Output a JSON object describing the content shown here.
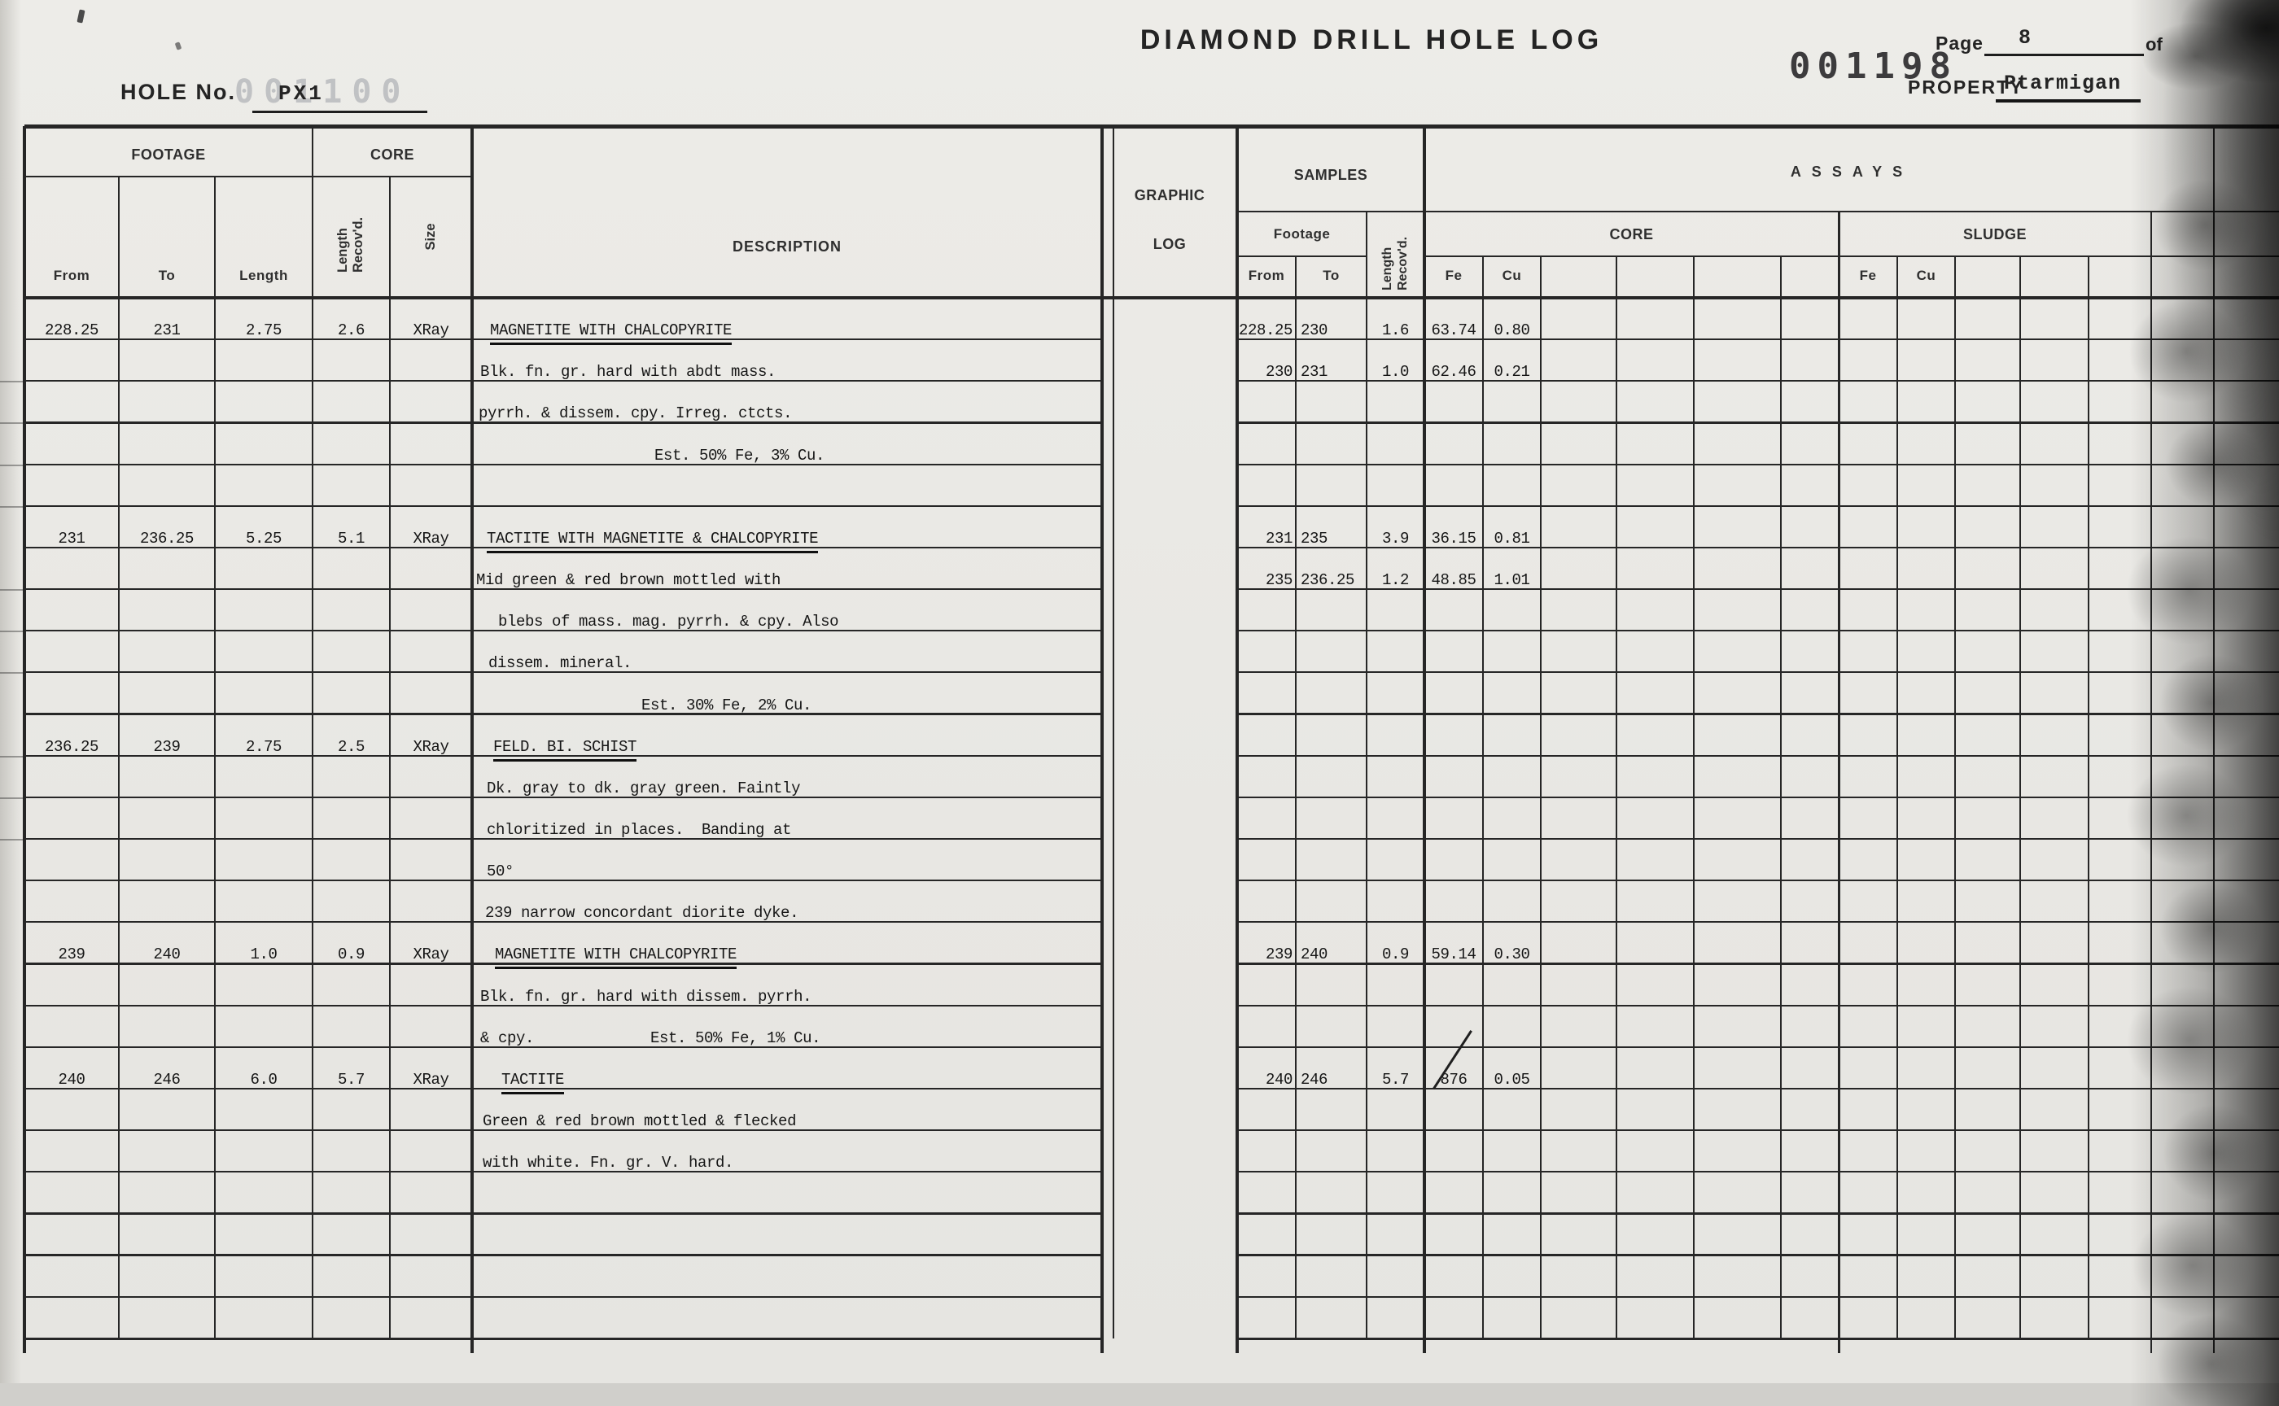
{
  "header": {
    "title": "DIAMOND DRILL HOLE LOG",
    "hole_no_label": "HOLE No.",
    "hole_no_value": "PX1",
    "hole_stamp_faint": "001100",
    "page_label": "Page",
    "page_value": "8",
    "of_label": "of",
    "serial_stamp": "001198",
    "property_label": "PROPERTY",
    "property_value": "Ptarmigan"
  },
  "table_header": {
    "footage": "FOOTAGE",
    "core": "CORE",
    "from": "From",
    "to": "To",
    "length": "Length",
    "length_recovd": "Length Recov'd.",
    "size": "Size",
    "description": "DESCRIPTION",
    "graphic": "GRAPHIC",
    "log": "LOG",
    "samples": "SAMPLES",
    "samples_footage": "Footage",
    "samples_from": "From",
    "samples_to": "To",
    "samples_length_recovd": "Length Recov'd.",
    "assays": "ASSAYS",
    "assays_core": "CORE",
    "assays_sludge": "SLUDGE",
    "core_fe": "Fe",
    "core_cu": "Cu",
    "sludge_fe": "Fe",
    "sludge_cu": "Cu"
  },
  "entries": {
    "intervals": [
      {
        "row": 0,
        "from": "228.25",
        "to": "231",
        "length": "2.75",
        "recovered": "2.6",
        "size": "XRay",
        "description": [
          {
            "text": "MAGNETITE WITH CHALCOPYRITE",
            "title": true,
            "indent": 4
          },
          {
            "text": "Blk. fn. gr. hard with abdt mass.",
            "indent": -8
          },
          {
            "text": "pyrrh. & dissem. cpy. Irreg. ctcts.",
            "indent": -10
          },
          {
            "text": "Est. 50% Fe, 3% Cu.",
            "indent": 206
          }
        ],
        "samples": [
          {
            "row": 0,
            "from": "228.25",
            "to": "230",
            "length": "1.6",
            "fe": "63.74",
            "cu": "0.80"
          },
          {
            "row": 1,
            "from": "230",
            "to": "231",
            "length": "1.0",
            "fe": "62.46",
            "cu": "0.21"
          }
        ]
      },
      {
        "row": 5,
        "from": "231",
        "to": "236.25",
        "length": "5.25",
        "recovered": "5.1",
        "size": "XRay",
        "description": [
          {
            "text": "TACTITE WITH MAGNETITE & CHALCOPYRITE",
            "title": true,
            "indent": 0
          },
          {
            "text": "Mid green & red brown mottled with",
            "indent": -13
          },
          {
            "text": "blebs of mass. mag. pyrrh. & cpy. Also",
            "indent": 14
          },
          {
            "text": "dissem. mineral.",
            "indent": 2
          },
          {
            "text": "Est. 30% Fe, 2% Cu.",
            "indent": 190
          }
        ],
        "samples": [
          {
            "row": 0,
            "from": "231",
            "to": "235",
            "length": "3.9",
            "fe": "36.15",
            "cu": "0.81"
          },
          {
            "row": 1,
            "from": "235",
            "to": "236.25",
            "length": "1.2",
            "fe": "48.85",
            "cu": "1.01"
          }
        ]
      },
      {
        "row": 10,
        "from": "236.25",
        "to": "239",
        "length": "2.75",
        "recovered": "2.5",
        "size": "XRay",
        "description": [
          {
            "text": "FELD. BI. SCHIST",
            "title": true,
            "indent": 8
          },
          {
            "text": "Dk. gray to dk. gray green. Faintly",
            "indent": 0
          },
          {
            "text": "chloritized in places.  Banding at",
            "indent": 0
          },
          {
            "text": "50°",
            "indent": 0
          },
          {
            "text": "239 narrow concordant diorite dyke.",
            "indent": -2
          }
        ],
        "samples": []
      },
      {
        "row": 15,
        "from": "239",
        "to": "240",
        "length": "1.0",
        "recovered": "0.9",
        "size": "XRay",
        "description": [
          {
            "text": "MAGNETITE WITH CHALCOPYRITE",
            "title": true,
            "indent": 10
          },
          {
            "text": "Blk. fn. gr. hard with dissem. pyrrh.",
            "indent": -8
          },
          {
            "text": "& cpy.             Est. 50% Fe, 1% Cu.",
            "indent": -8
          }
        ],
        "samples": [
          {
            "row": 0,
            "from": "239",
            "to": "240",
            "length": "0.9",
            "fe": "59.14",
            "cu": "0.30"
          }
        ]
      },
      {
        "row": 18,
        "from": "240",
        "to": "246",
        "length": "6.0",
        "recovered": "5.7",
        "size": "XRay",
        "description": [
          {
            "text": "TACTITE",
            "title": true,
            "indent": 18
          },
          {
            "text": "Green & red brown mottled & flecked",
            "indent": -5
          },
          {
            "text": "with white. Fn. gr. V. hard.",
            "indent": -5
          }
        ],
        "samples": [
          {
            "row": 0,
            "from": "240",
            "to": "246",
            "length": "5.7",
            "fe": "876",
            "fe_struck": true,
            "cu": "0.05"
          }
        ]
      }
    ]
  }
}
